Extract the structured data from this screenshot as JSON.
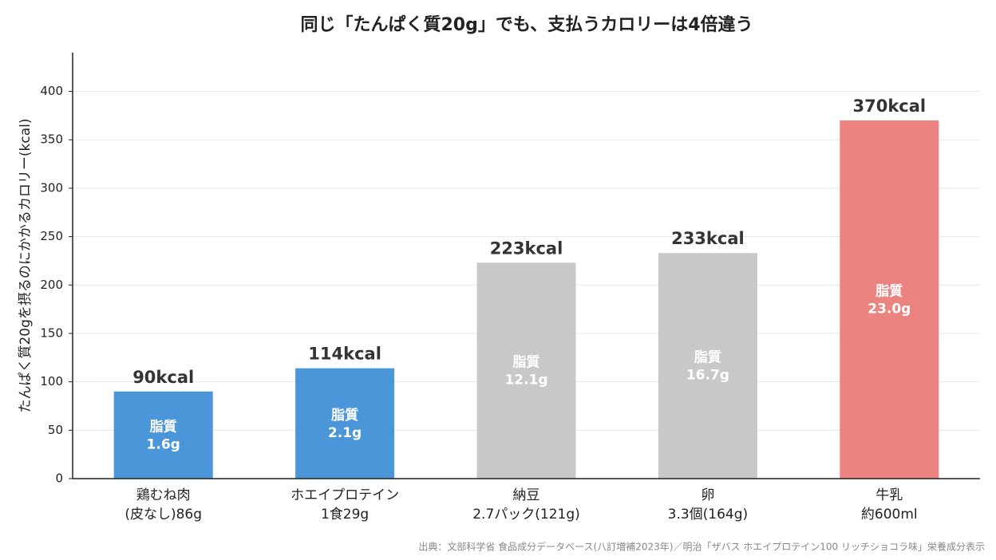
{
  "chart_data": {
    "type": "bar",
    "title": "同じ「たんぱく質20g」でも、支払うカロリーは4倍違う",
    "y_label": "たんぱく質20gを摂るのにかかるカロリー(kcal)",
    "categories": [
      [
        "鶏むね肉",
        "(皮なし)86g"
      ],
      [
        "ホエイプロテイン",
        "1食29g"
      ],
      [
        "納豆",
        "2.7パック(121g)"
      ],
      [
        "卵",
        "3.3個(164g)"
      ],
      [
        "牛乳",
        "約600ml"
      ]
    ],
    "values": [
      90,
      114,
      223,
      233,
      370
    ],
    "value_labels": [
      "90kcal",
      "114kcal",
      "223kcal",
      "233kcal",
      "370kcal"
    ],
    "colors": [
      "#4a96d9",
      "#4a96d9",
      "#c8c8c8",
      "#c8c8c8",
      "#eb8481"
    ],
    "fat_label": "脂質",
    "fat_value_labels": [
      "1.6g",
      "2.1g",
      "12.1g",
      "16.7g",
      "23.0g"
    ],
    "ylim": [
      0,
      440
    ],
    "yticks": [
      0,
      50,
      100,
      150,
      200,
      250,
      300,
      350,
      400
    ],
    "grid": true,
    "source": "出典：文部科学省 食品成分データベース(八訂増補2023年)／明治「ザバス ホエイプロテイン100 リッチショコラ味」栄養成分表示"
  }
}
